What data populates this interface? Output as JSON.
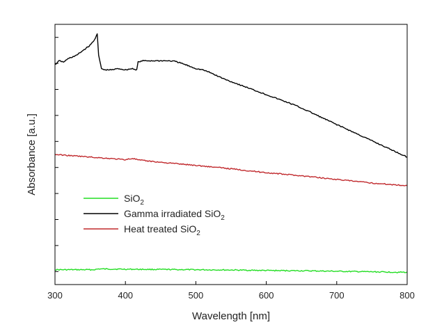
{
  "chart_data": {
    "type": "line",
    "title": "",
    "xlabel": "Wavelength [nm]",
    "ylabel": "Absorbance [a.u.]",
    "xlim": [
      300,
      800
    ],
    "ylim": [
      0,
      1
    ],
    "x_ticks": [
      300,
      400,
      500,
      600,
      700,
      800
    ],
    "y_ticks": [
      0.05,
      0.15,
      0.25,
      0.35,
      0.45,
      0.55,
      0.65,
      0.75,
      0.85,
      0.95
    ],
    "y_tick_labels_visible": false,
    "grid": false,
    "legend_position": "bottom-left",
    "series": [
      {
        "name": "SiO2",
        "name_main": "SiO",
        "name_sub": "2",
        "color": "#22dd22",
        "x": [
          300,
          355,
          362,
          400,
          450,
          500,
          550,
          600,
          650,
          700,
          750,
          800
        ],
        "y": [
          0.057,
          0.057,
          0.06,
          0.059,
          0.058,
          0.057,
          0.056,
          0.054,
          0.053,
          0.051,
          0.049,
          0.047
        ]
      },
      {
        "name": "Gamma irradiated SiO2",
        "name_main": "Gamma irradiated SiO",
        "name_sub": "2",
        "color": "#000000",
        "x": [
          300,
          306,
          312,
          320,
          330,
          340,
          350,
          356,
          360,
          362,
          366,
          370,
          380,
          390,
          400,
          410,
          416,
          418,
          425,
          440,
          460,
          470,
          480,
          490,
          500,
          510,
          520,
          540,
          560,
          580,
          600,
          620,
          640,
          660,
          680,
          700,
          720,
          740,
          760,
          780,
          800
        ],
        "y": [
          0.845,
          0.86,
          0.855,
          0.87,
          0.88,
          0.9,
          0.92,
          0.94,
          0.965,
          0.88,
          0.83,
          0.825,
          0.825,
          0.83,
          0.825,
          0.83,
          0.825,
          0.855,
          0.86,
          0.86,
          0.86,
          0.858,
          0.85,
          0.84,
          0.83,
          0.825,
          0.815,
          0.79,
          0.77,
          0.75,
          0.73,
          0.71,
          0.69,
          0.666,
          0.64,
          0.615,
          0.59,
          0.565,
          0.54,
          0.515,
          0.49
        ]
      },
      {
        "name": "Heat treated SiO2",
        "name_main": "Heat treated SiO",
        "name_sub": "2",
        "color": "#c0282c",
        "x": [
          300,
          350,
          400,
          410,
          420,
          450,
          500,
          550,
          600,
          650,
          700,
          750,
          800
        ],
        "y": [
          0.5,
          0.49,
          0.48,
          0.485,
          0.478,
          0.47,
          0.458,
          0.445,
          0.43,
          0.418,
          0.404,
          0.39,
          0.38
        ]
      }
    ]
  }
}
